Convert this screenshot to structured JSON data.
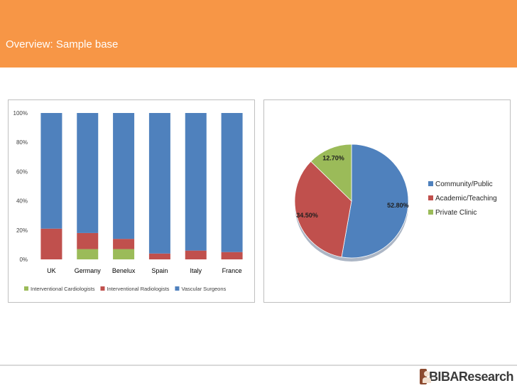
{
  "slide": {
    "title": "Overview: Sample base"
  },
  "chart_data": [
    {
      "type": "bar",
      "stacked": true,
      "categories": [
        "UK",
        "Germany",
        "Benelux",
        "Spain",
        "Italy",
        "France"
      ],
      "series": [
        {
          "name": "Interventional Cardiologists",
          "color": "#9bbb59",
          "values": [
            0,
            7,
            7,
            0,
            0,
            0
          ]
        },
        {
          "name": "Interventional Radiologists",
          "color": "#c0504d",
          "values": [
            21,
            11,
            7,
            4,
            6,
            5
          ]
        },
        {
          "name": "Vascular Surgeons",
          "color": "#4f81bd",
          "values": [
            79,
            82,
            86,
            96,
            94,
            95
          ]
        }
      ],
      "yticks": [
        "0%",
        "20%",
        "40%",
        "60%",
        "80%",
        "100%"
      ],
      "ylim": [
        0,
        100
      ],
      "legend_position": "bottom",
      "grid": false
    },
    {
      "type": "pie",
      "slices": [
        {
          "name": "Community/Public",
          "value": 52.8,
          "label": "52.80%",
          "color": "#4f81bd"
        },
        {
          "name": "Academic/Teaching",
          "value": 34.5,
          "label": "34.50%",
          "color": "#c0504d"
        },
        {
          "name": "Private Clinic",
          "value": 12.7,
          "label": "12.70%",
          "color": "#9bbb59"
        }
      ],
      "legend_position": "right"
    }
  ],
  "branding": {
    "logo_text": "BIBAResearch"
  }
}
